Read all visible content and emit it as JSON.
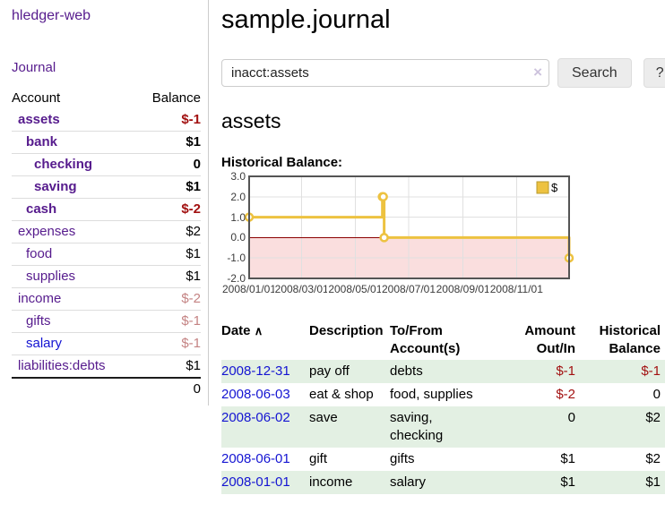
{
  "app": {
    "title": "hledger-web",
    "nav_journal": "Journal"
  },
  "sidebar": {
    "columns": {
      "account": "Account",
      "balance": "Balance"
    },
    "accounts": [
      {
        "name": "assets",
        "balance": "$-1",
        "depth": 1,
        "bold": true
      },
      {
        "name": "bank",
        "balance": "$1",
        "depth": 2,
        "bold": true
      },
      {
        "name": "checking",
        "balance": "0",
        "depth": 3,
        "bold": true
      },
      {
        "name": "saving",
        "balance": "$1",
        "depth": 3,
        "bold": true
      },
      {
        "name": "cash",
        "balance": "$-2",
        "depth": 2,
        "bold": true
      },
      {
        "name": "expenses",
        "balance": "$2",
        "depth": 1,
        "bold": false
      },
      {
        "name": "food",
        "balance": "$1",
        "depth": 2,
        "bold": false
      },
      {
        "name": "supplies",
        "balance": "$1",
        "depth": 2,
        "bold": false
      },
      {
        "name": "income",
        "balance": "$-2",
        "depth": 1,
        "bold": false
      },
      {
        "name": "gifts",
        "balance": "$-1",
        "depth": 2,
        "bold": false
      },
      {
        "name": "salary",
        "balance": "$-1",
        "depth": 2,
        "bold": false,
        "blue_link": true
      },
      {
        "name": "liabilities:debts",
        "balance": "$1",
        "depth": 1,
        "bold": false
      }
    ],
    "total": "0"
  },
  "main": {
    "title": "sample.journal",
    "search": {
      "value": "inacct:assets",
      "clear_icon": "×",
      "search_button": "Search",
      "help_button": "?"
    },
    "account_heading": "assets",
    "chart_label": "Historical Balance:"
  },
  "chart_data": {
    "type": "line",
    "title": "Historical Balance",
    "step": true,
    "series": [
      {
        "name": "$",
        "color": "#edc240",
        "points": [
          [
            "2008-01-01",
            1
          ],
          [
            "2008-06-01",
            2
          ],
          [
            "2008-06-02",
            2
          ],
          [
            "2008-06-03",
            0
          ],
          [
            "2008-12-31",
            -1
          ]
        ]
      }
    ],
    "x_range": [
      "2008-01-01",
      "2008-12-31"
    ],
    "y_range": [
      -2,
      3
    ],
    "x_tick_labels": [
      "2008/01/01",
      "2008/03/01",
      "2008/05/01",
      "2008/07/01",
      "2008/09/01",
      "2008/11/01"
    ],
    "x_tick_dates": [
      "2008-01-01",
      "2008-03-01",
      "2008-05-01",
      "2008-07-01",
      "2008-09-01",
      "2008-11-01"
    ],
    "y_tick_labels": [
      "3.0",
      "2.0",
      "1.0",
      "0.0",
      "-1.0",
      "-2.0"
    ],
    "y_tick_values": [
      3,
      2,
      1,
      0,
      -1,
      -2
    ],
    "grid": true,
    "legend_position": "top-right",
    "legend_label": "$",
    "negative_region_color": "#fadede",
    "zero_line_color": "#8b0000",
    "border_color": "#545454",
    "grid_color": "#e0e0e0"
  },
  "transactions": {
    "headers": {
      "date": "Date",
      "sort_indicator": "∧",
      "description": "Description",
      "tofrom_line1": "To/From",
      "tofrom_line2": "Account(s)",
      "amount_line1": "Amount",
      "amount_line2": "Out/In",
      "balance_line1": "Historical",
      "balance_line2": "Balance"
    },
    "rows": [
      {
        "date": "2008-12-31",
        "description": "pay off",
        "accounts": "debts",
        "amount": "$-1",
        "balance": "$-1"
      },
      {
        "date": "2008-06-03",
        "description": "eat & shop",
        "accounts": "food, supplies",
        "amount": "$-2",
        "balance": "0"
      },
      {
        "date": "2008-06-02",
        "description": "save",
        "accounts": "saving, checking",
        "amount": "0",
        "balance": "$2"
      },
      {
        "date": "2008-06-01",
        "description": "gift",
        "accounts": "gifts",
        "amount": "$1",
        "balance": "$2"
      },
      {
        "date": "2008-01-01",
        "description": "income",
        "accounts": "salary",
        "amount": "$1",
        "balance": "$1"
      }
    ]
  }
}
